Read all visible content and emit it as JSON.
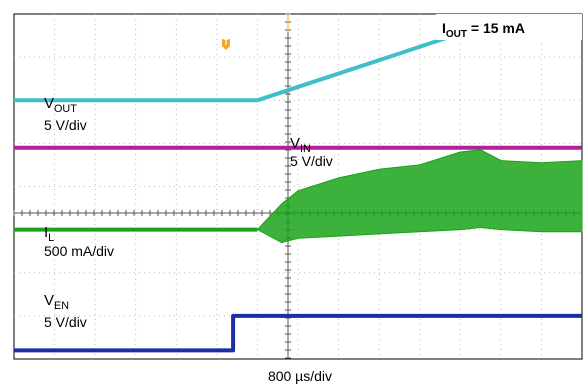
{
  "chart_data": {
    "type": "line",
    "title": "I<sub>OUT</sub> = 15 mA",
    "title_parts": {
      "main": "I",
      "sub": "OUT",
      "rest": " = 15 mA"
    },
    "xlabel": "800 µs/div",
    "grid": true,
    "x_divisions": 10,
    "y_divisions": 8,
    "x_unit_per_div": "800 µs",
    "trigger_marker": {
      "label": "T",
      "x_div": 7,
      "color": "#f5a623"
    },
    "series": [
      {
        "name": "V_OUT",
        "label_main": "V",
        "label_sub": "OUT",
        "scale": "5 V/div",
        "color": "#3fbfc9",
        "type": "step-ramp",
        "x_div": [
          0,
          6.0,
          11.0,
          14.0
        ],
        "y_div": [
          6.0,
          6.0,
          7.55,
          7.55
        ]
      },
      {
        "name": "V_IN",
        "label_main": "V",
        "label_sub": "IN",
        "scale": "5 V/div",
        "color": "#b0219a",
        "type": "flat",
        "x_div": [
          0,
          14.0
        ],
        "y_div": [
          4.9,
          4.9
        ]
      },
      {
        "name": "I_L",
        "label_main": "I",
        "label_sub": "L",
        "scale": "500 mA/div",
        "color": "#1aa31a",
        "type": "envelope",
        "x_div": [
          0,
          6.0,
          6.6,
          7.0,
          8.0,
          9.0,
          10.0,
          11.0,
          11.5,
          12.0,
          13.0,
          14.0
        ],
        "upper_div": [
          3.0,
          3.0,
          3.6,
          3.9,
          4.2,
          4.4,
          4.5,
          4.8,
          4.85,
          4.6,
          4.55,
          4.6
        ],
        "lower_div": [
          3.0,
          3.0,
          2.7,
          2.8,
          2.85,
          2.9,
          2.95,
          3.0,
          3.05,
          3.0,
          2.95,
          2.95
        ]
      },
      {
        "name": "V_EN",
        "label_main": "V",
        "label_sub": "EN",
        "scale": "5 V/div",
        "color": "#1c2ea6",
        "type": "step",
        "x_div": [
          0,
          5.4,
          5.4,
          14.0
        ],
        "y_div": [
          0.2,
          0.2,
          1.0,
          1.0
        ]
      }
    ]
  }
}
